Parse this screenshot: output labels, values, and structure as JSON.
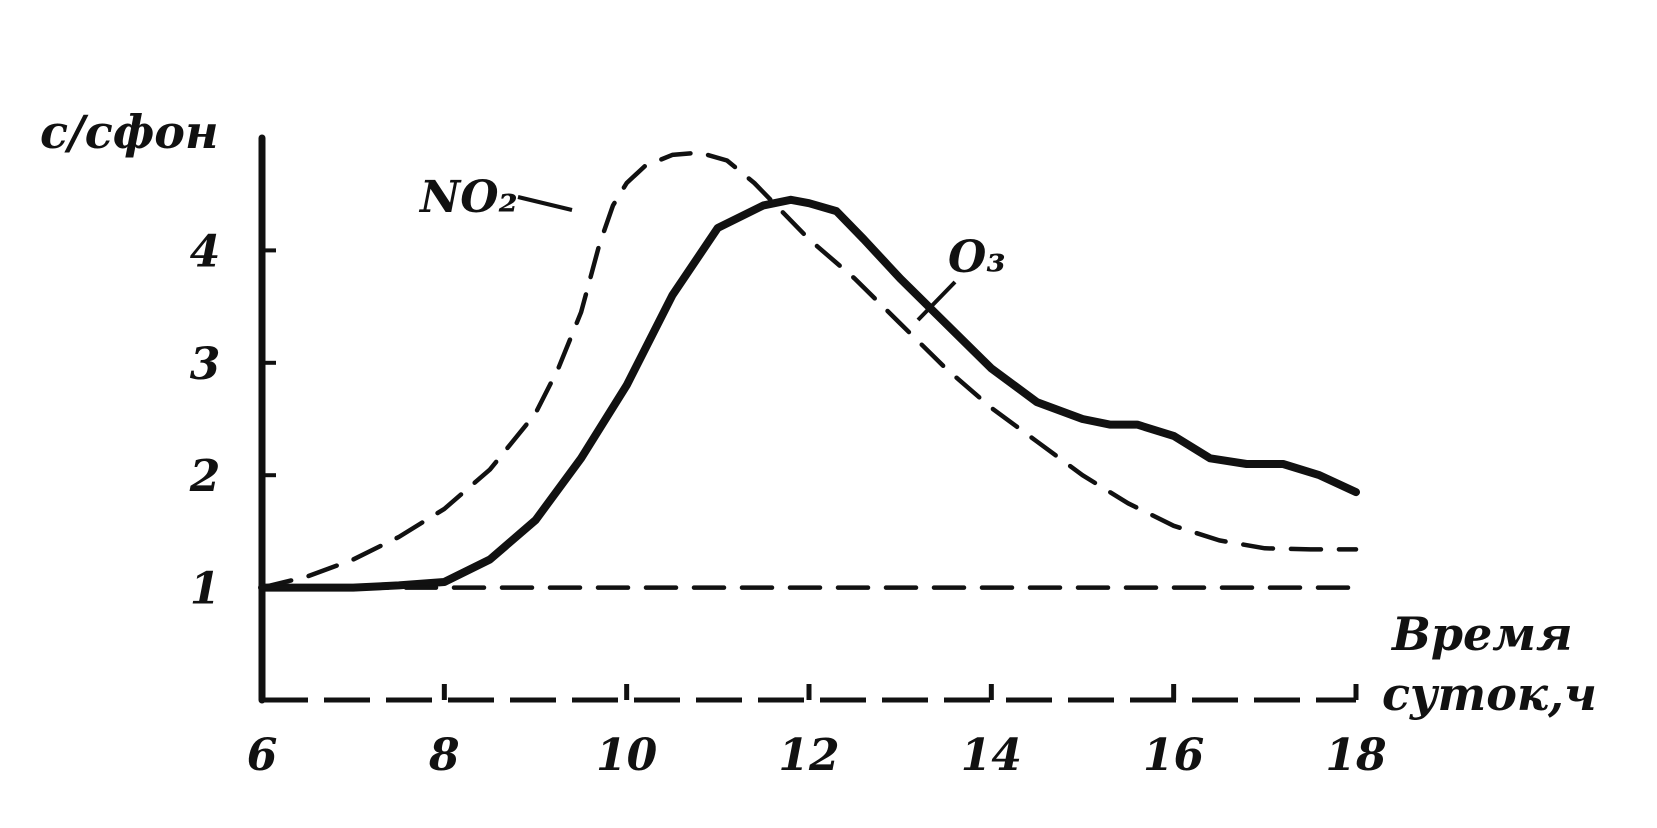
{
  "chart_data": {
    "type": "line",
    "title": "",
    "ylabel": "с/сфон",
    "xlabel_line1": "Время",
    "xlabel_line2": "суток,ч",
    "xlim": [
      6,
      18
    ],
    "ylim": [
      0,
      5
    ],
    "x_ticks": [
      "6",
      "8",
      "10",
      "12",
      "14",
      "16",
      "18"
    ],
    "y_ticks": [
      "1",
      "2",
      "3",
      "4"
    ],
    "grid": false,
    "legend": "none",
    "series": [
      {
        "name": "NO₂",
        "style": "dashed",
        "x": [
          6.0,
          6.5,
          7.0,
          7.5,
          8.0,
          8.5,
          9.0,
          9.25,
          9.5,
          9.7,
          9.85,
          10.0,
          10.2,
          10.5,
          10.8,
          11.1,
          11.4,
          11.7,
          12.0,
          12.5,
          13.0,
          13.5,
          14.0,
          14.5,
          15.0,
          15.5,
          16.0,
          16.5,
          17.0,
          17.5,
          18.0
        ],
        "y": [
          1.0,
          1.1,
          1.25,
          1.45,
          1.7,
          2.05,
          2.55,
          2.95,
          3.45,
          4.05,
          4.4,
          4.6,
          4.75,
          4.85,
          4.87,
          4.8,
          4.6,
          4.35,
          4.1,
          3.75,
          3.35,
          2.95,
          2.6,
          2.3,
          2.0,
          1.75,
          1.55,
          1.42,
          1.35,
          1.34,
          1.34
        ]
      },
      {
        "name": "O₃",
        "style": "solid",
        "x": [
          6.0,
          6.5,
          7.0,
          7.5,
          8.0,
          8.5,
          9.0,
          9.5,
          10.0,
          10.5,
          11.0,
          11.5,
          11.8,
          12.0,
          12.3,
          12.6,
          13.0,
          13.5,
          14.0,
          14.5,
          15.0,
          15.3,
          15.6,
          16.0,
          16.4,
          16.8,
          17.2,
          17.6,
          18.0
        ],
        "y": [
          1.0,
          1.0,
          1.0,
          1.02,
          1.05,
          1.25,
          1.6,
          2.15,
          2.8,
          3.6,
          4.2,
          4.4,
          4.45,
          4.42,
          4.35,
          4.1,
          3.75,
          3.35,
          2.95,
          2.65,
          2.5,
          2.45,
          2.45,
          2.35,
          2.15,
          2.1,
          2.1,
          2.0,
          1.85
        ]
      },
      {
        "name": "",
        "style": "dashed",
        "x": [
          6.0,
          18.0
        ],
        "y": [
          1.0,
          1.0
        ]
      }
    ],
    "annotations": [
      {
        "text": "NO₂",
        "series": "NO₂"
      },
      {
        "text": "O₃",
        "series": "O₃"
      }
    ]
  }
}
